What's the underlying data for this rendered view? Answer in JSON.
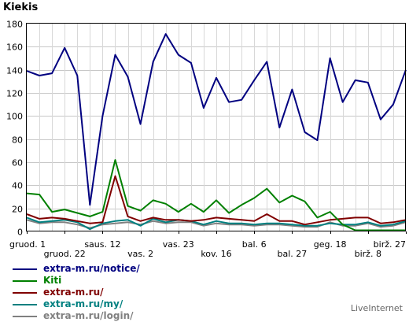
{
  "chart_data": {
    "type": "line",
    "ylabel": "Kiekis",
    "ylim": [
      0,
      180
    ],
    "yticks": [
      0,
      20,
      40,
      60,
      80,
      100,
      120,
      140,
      160,
      180
    ],
    "grid": true,
    "x_tick_labels": [
      {
        "index": 0,
        "label": "gruod. 1",
        "row": 0
      },
      {
        "index": 3,
        "label": "gruod. 22",
        "row": 1
      },
      {
        "index": 6,
        "label": "saus. 12",
        "row": 0
      },
      {
        "index": 9,
        "label": "vas. 2",
        "row": 1
      },
      {
        "index": 12,
        "label": "vas. 23",
        "row": 0
      },
      {
        "index": 15,
        "label": "kov. 16",
        "row": 1
      },
      {
        "index": 18,
        "label": "bal. 6",
        "row": 0
      },
      {
        "index": 21,
        "label": "bal. 27",
        "row": 1
      },
      {
        "index": 24,
        "label": "geg. 18",
        "row": 0
      },
      {
        "index": 27,
        "label": "birž. 8",
        "row": 1
      },
      {
        "index": 30,
        "label": "birž. 27",
        "row": 0
      }
    ],
    "series": [
      {
        "name": "extra-m.ru/notice/",
        "color": "#000080",
        "values": [
          139,
          135,
          137,
          159,
          135,
          23,
          100,
          153,
          134,
          93,
          147,
          171,
          153,
          146,
          107,
          133,
          112,
          114,
          131,
          147,
          90,
          123,
          86,
          79,
          150,
          112,
          131,
          129,
          97,
          110,
          140
        ]
      },
      {
        "name": "Kiti",
        "color": "#008000",
        "values": [
          33,
          32,
          17,
          19,
          16,
          13,
          17,
          62,
          22,
          18,
          27,
          24,
          17,
          24,
          17,
          27,
          16,
          23,
          29,
          37,
          25,
          31,
          26,
          12,
          17,
          6,
          1,
          1,
          1,
          1,
          1
        ]
      },
      {
        "name": "extra-m.ru/",
        "color": "#800000",
        "values": [
          15,
          11,
          12,
          11,
          9,
          7,
          8,
          48,
          13,
          9,
          12,
          10,
          10,
          9,
          10,
          12,
          11,
          10,
          9,
          15,
          9,
          9,
          6,
          8,
          10,
          11,
          12,
          12,
          7,
          8,
          10
        ]
      },
      {
        "name": "extra-m.ru/my/",
        "color": "#008080",
        "values": [
          12,
          8,
          9,
          10,
          8,
          2,
          7,
          9,
          10,
          5,
          11,
          8,
          10,
          9,
          6,
          9,
          7,
          7,
          6,
          7,
          7,
          6,
          5,
          5,
          7,
          6,
          6,
          8,
          5,
          6,
          9
        ]
      },
      {
        "name": "extra-m.ru/login/",
        "color": "#808080",
        "values": [
          10,
          7,
          8,
          8,
          6,
          3,
          6,
          7,
          8,
          6,
          9,
          7,
          8,
          8,
          5,
          7,
          6,
          6,
          5,
          6,
          6,
          5,
          4,
          4,
          8,
          5,
          5,
          7,
          4,
          5,
          8
        ]
      }
    ]
  },
  "branding": "LiveInternet"
}
